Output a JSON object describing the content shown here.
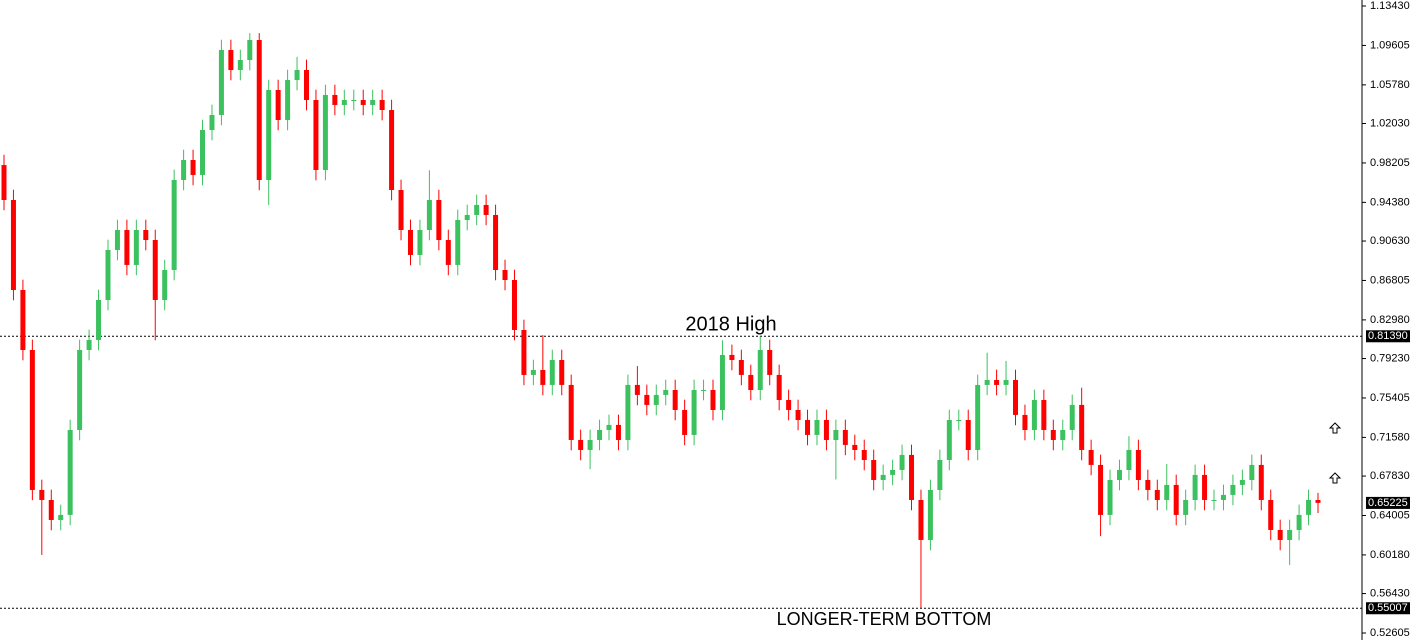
{
  "chart_data": {
    "type": "candlestick",
    "up_color": "#3cc15f",
    "down_color": "#ff0000",
    "annotations": [
      "2018 High",
      "LONGER-TERM BOTTOM"
    ],
    "ylim": [
      0.52605,
      1.1343
    ],
    "yticks": [
      {
        "value": 1.1343,
        "label": "1.13430"
      },
      1.09605,
      {
        "value": 1.0578,
        "label": "1.05780"
      },
      {
        "value": 1.0203,
        "label": "1.02030"
      },
      0.98205,
      {
        "value": 0.9438,
        "label": "0.94380"
      },
      {
        "value": 0.9063,
        "label": "0.90630"
      },
      0.86805,
      {
        "value": 0.8298,
        "label": "0.82980"
      },
      {
        "value": 0.7923,
        "label": "0.79230"
      },
      0.75405,
      {
        "value": 0.7158,
        "label": "0.71580"
      },
      {
        "value": 0.6783,
        "label": "0.67830"
      },
      0.64005,
      {
        "value": 0.6018,
        "label": "0.60180"
      },
      {
        "value": 0.5643,
        "label": "0.56430"
      },
      0.52605
    ],
    "levels": [
      {
        "value": 0.8139,
        "label": "0.81390"
      },
      {
        "value": 0.55007,
        "label": "0.55007"
      }
    ],
    "last_price": {
      "value": 0.65225,
      "label": "0.65225"
    },
    "open": [
      0.98,
      0.9461,
      0.8588,
      0.8006,
      0.6648,
      0.6551,
      0.6357,
      0.6406,
      0.723,
      0.8006,
      0.8103,
      0.8491,
      0.8976,
      0.917,
      0.8831,
      0.917,
      0.9073,
      0.8491,
      0.8782,
      0.9655,
      0.9849,
      0.9704,
      1.014,
      1.0286,
      1.0916,
      1.0722,
      1.0819,
      1.1013,
      0.9655,
      1.0528,
      1.0237,
      1.0625,
      1.0722,
      1.0431,
      0.9752,
      1.048,
      1.0383,
      1.0431,
      1.0431,
      1.0383,
      1.0431,
      1.0334,
      0.9558,
      0.917,
      0.8928,
      0.917,
      0.9461,
      0.9073,
      0.8831,
      0.9267,
      0.9316,
      0.9413,
      0.9316,
      0.8782,
      0.8685,
      0.82,
      0.7764,
      0.7812,
      0.7667,
      0.7909,
      0.7667,
      0.7133,
      0.7036,
      0.7133,
      0.723,
      0.7279,
      0.7133,
      0.7667,
      0.757,
      0.7473,
      0.757,
      0.7618,
      0.7424,
      0.7182,
      0.7618,
      0.7618,
      0.7424,
      0.7958,
      0.7909,
      0.7764,
      0.7618,
      0.8006,
      0.7764,
      0.7521,
      0.7424,
      0.7327,
      0.7182,
      0.7327,
      0.7133,
      0.723,
      0.7085,
      0.7036,
      0.6939,
      0.6745,
      0.6794,
      0.6842,
      0.6988,
      0.6551,
      0.6163,
      0.6648,
      0.6939,
      0.7327,
      0.7327,
      0.7036,
      0.7667,
      0.7715,
      0.7667,
      0.7715,
      0.7376,
      0.723,
      0.7521,
      0.723,
      0.7133,
      0.723,
      0.7473,
      0.7036,
      0.6891,
      0.6406,
      0.6745,
      0.6842,
      0.7036,
      0.6745,
      0.6648,
      0.6551,
      0.6697,
      0.6406,
      0.6551,
      0.6794,
      0.6551,
      0.6551,
      0.66,
      0.6697,
      0.6745,
      0.6891,
      0.6551,
      0.626,
      0.6163,
      0.626,
      0.6406,
      0.6551
    ],
    "high": [
      0.99,
      0.9561,
      0.8688,
      0.8106,
      0.6748,
      0.6651,
      0.6506,
      0.733,
      0.8106,
      0.8203,
      0.8591,
      0.9076,
      0.927,
      0.927,
      0.927,
      0.927,
      0.9173,
      0.8882,
      0.9755,
      0.9949,
      0.9949,
      1.024,
      1.0386,
      1.1016,
      1.1016,
      1.0919,
      1.108,
      1.108,
      1.0628,
      1.0628,
      1.0725,
      1.085,
      1.0822,
      1.0531,
      1.058,
      1.058,
      1.0531,
      1.0531,
      1.0531,
      1.0531,
      1.0531,
      1.0434,
      0.9658,
      0.927,
      0.927,
      0.975,
      0.9561,
      0.9173,
      0.9367,
      0.9416,
      0.9513,
      0.9513,
      0.9416,
      0.8882,
      0.8785,
      0.83,
      0.7912,
      0.815,
      0.8009,
      0.8009,
      0.7767,
      0.7233,
      0.7233,
      0.733,
      0.7379,
      0.7379,
      0.7767,
      0.785,
      0.767,
      0.767,
      0.7718,
      0.7718,
      0.7524,
      0.7718,
      0.7718,
      0.7718,
      0.81,
      0.8058,
      0.8009,
      0.7864,
      0.8139,
      0.8106,
      0.7864,
      0.7621,
      0.7524,
      0.7427,
      0.7427,
      0.7427,
      0.733,
      0.733,
      0.7185,
      0.7136,
      0.7039,
      0.6894,
      0.6942,
      0.7088,
      0.7088,
      0.6651,
      0.6748,
      0.7039,
      0.7427,
      0.7427,
      0.7427,
      0.7767,
      0.798,
      0.7815,
      0.79,
      0.7815,
      0.7476,
      0.7621,
      0.7621,
      0.733,
      0.733,
      0.7573,
      0.764,
      0.7136,
      0.6991,
      0.6845,
      0.6942,
      0.717,
      0.7136,
      0.6845,
      0.6748,
      0.69,
      0.6797,
      0.6651,
      0.6894,
      0.6894,
      0.6651,
      0.67,
      0.6797,
      0.6845,
      0.6991,
      0.6991,
      0.6651,
      0.636,
      0.636,
      0.6506,
      0.6651,
      0.662
    ],
    "low": [
      0.9361,
      0.8488,
      0.7906,
      0.6548,
      0.6018,
      0.6257,
      0.6257,
      0.6306,
      0.713,
      0.7906,
      0.8003,
      0.8391,
      0.8876,
      0.8731,
      0.8731,
      0.8973,
      0.81,
      0.8391,
      0.8682,
      0.9555,
      0.9604,
      0.9604,
      1.004,
      1.0186,
      1.0622,
      1.0622,
      1.0719,
      0.9555,
      0.9412,
      1.0137,
      1.0137,
      1.0525,
      1.0331,
      0.9652,
      0.9652,
      1.0283,
      1.0283,
      1.0331,
      1.0283,
      1.0283,
      1.0234,
      0.9458,
      0.907,
      0.8828,
      0.8828,
      0.907,
      0.8973,
      0.8731,
      0.8731,
      0.9167,
      0.9216,
      0.9216,
      0.8682,
      0.8585,
      0.81,
      0.7664,
      0.7664,
      0.7567,
      0.7567,
      0.7567,
      0.7033,
      0.6936,
      0.685,
      0.7033,
      0.713,
      0.7033,
      0.7033,
      0.747,
      0.7373,
      0.7373,
      0.747,
      0.7324,
      0.7082,
      0.7082,
      0.7518,
      0.7324,
      0.7324,
      0.7809,
      0.7664,
      0.7518,
      0.7518,
      0.7664,
      0.7421,
      0.7324,
      0.7227,
      0.7082,
      0.7082,
      0.7033,
      0.675,
      0.6985,
      0.6936,
      0.6839,
      0.6645,
      0.6645,
      0.6694,
      0.6742,
      0.6451,
      0.5501,
      0.6063,
      0.6548,
      0.6839,
      0.7227,
      0.6936,
      0.6936,
      0.7567,
      0.7567,
      0.7567,
      0.7276,
      0.713,
      0.713,
      0.713,
      0.7033,
      0.7033,
      0.713,
      0.6936,
      0.6791,
      0.62,
      0.6306,
      0.6645,
      0.6742,
      0.6645,
      0.6548,
      0.6451,
      0.6451,
      0.6306,
      0.6306,
      0.6451,
      0.6451,
      0.6451,
      0.6451,
      0.65,
      0.6597,
      0.6645,
      0.6451,
      0.616,
      0.6063,
      0.592,
      0.616,
      0.6306,
      0.6423
    ],
    "close": [
      0.9461,
      0.8588,
      0.8006,
      0.6648,
      0.6551,
      0.6357,
      0.6406,
      0.723,
      0.8006,
      0.8103,
      0.8491,
      0.8976,
      0.917,
      0.8831,
      0.917,
      0.9073,
      0.8491,
      0.8782,
      0.9655,
      0.9849,
      0.9704,
      1.014,
      1.0286,
      1.0916,
      1.0722,
      1.0819,
      1.1013,
      0.9655,
      1.0528,
      1.0237,
      1.0625,
      1.0722,
      1.0431,
      0.9752,
      1.048,
      1.0383,
      1.0431,
      1.0431,
      1.0383,
      1.0431,
      1.0334,
      0.9558,
      0.917,
      0.8928,
      0.917,
      0.9461,
      0.9073,
      0.8831,
      0.9267,
      0.9316,
      0.9413,
      0.9316,
      0.8782,
      0.8685,
      0.82,
      0.7764,
      0.7812,
      0.7667,
      0.7909,
      0.7667,
      0.7133,
      0.7036,
      0.7133,
      0.723,
      0.7279,
      0.7133,
      0.7667,
      0.757,
      0.7473,
      0.757,
      0.7618,
      0.7424,
      0.7182,
      0.7618,
      0.7618,
      0.7424,
      0.7958,
      0.7909,
      0.7764,
      0.7618,
      0.8006,
      0.7764,
      0.7521,
      0.7424,
      0.7327,
      0.7182,
      0.7327,
      0.7133,
      0.723,
      0.7085,
      0.7036,
      0.6939,
      0.6745,
      0.6794,
      0.6842,
      0.6988,
      0.6551,
      0.6163,
      0.6648,
      0.6939,
      0.7327,
      0.7327,
      0.7036,
      0.7667,
      0.7715,
      0.7667,
      0.7715,
      0.7376,
      0.723,
      0.7521,
      0.723,
      0.7133,
      0.723,
      0.7473,
      0.7036,
      0.6891,
      0.6406,
      0.6745,
      0.6842,
      0.7036,
      0.6745,
      0.6648,
      0.6551,
      0.6697,
      0.6406,
      0.6551,
      0.6794,
      0.6551,
      0.6551,
      0.66,
      0.6697,
      0.6745,
      0.6891,
      0.6551,
      0.626,
      0.6163,
      0.626,
      0.6406,
      0.6551,
      0.6523
    ]
  }
}
